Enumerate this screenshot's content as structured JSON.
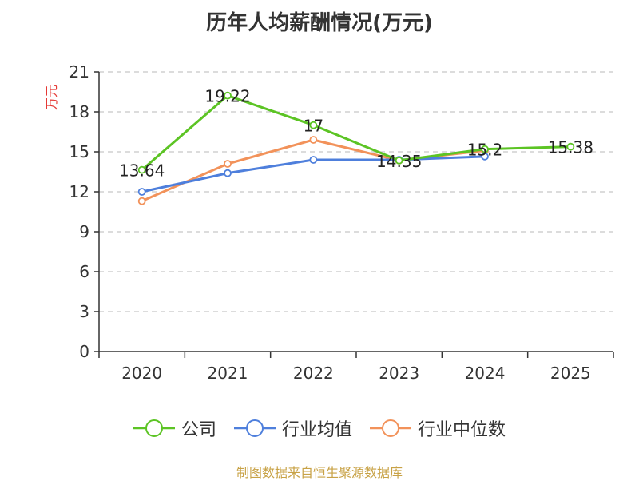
{
  "chart_data": {
    "type": "line",
    "title": "历年人均薪酬情况(万元)",
    "ylabel": "万元",
    "xlabel": "",
    "ylim": [
      0,
      21
    ],
    "yticks": [
      0,
      3,
      6,
      9,
      12,
      15,
      18,
      21
    ],
    "categories": [
      "2020",
      "2021",
      "2022",
      "2023",
      "2024",
      "2025"
    ],
    "series": [
      {
        "name": "公司",
        "color": "#5cc424",
        "values": [
          13.64,
          19.22,
          17,
          14.35,
          15.2,
          15.38
        ],
        "labels": [
          "13.64",
          "19.22",
          "17",
          "14.35",
          "15.2",
          "15.38"
        ]
      },
      {
        "name": "行业均值",
        "color": "#4e7fdc",
        "values": [
          12.0,
          13.4,
          14.4,
          14.4,
          14.65,
          null
        ]
      },
      {
        "name": "行业中位数",
        "color": "#f2925a",
        "values": [
          11.3,
          14.1,
          15.9,
          14.35,
          15.1,
          null
        ]
      }
    ]
  },
  "source": "制图数据来自恒生聚源数据库"
}
